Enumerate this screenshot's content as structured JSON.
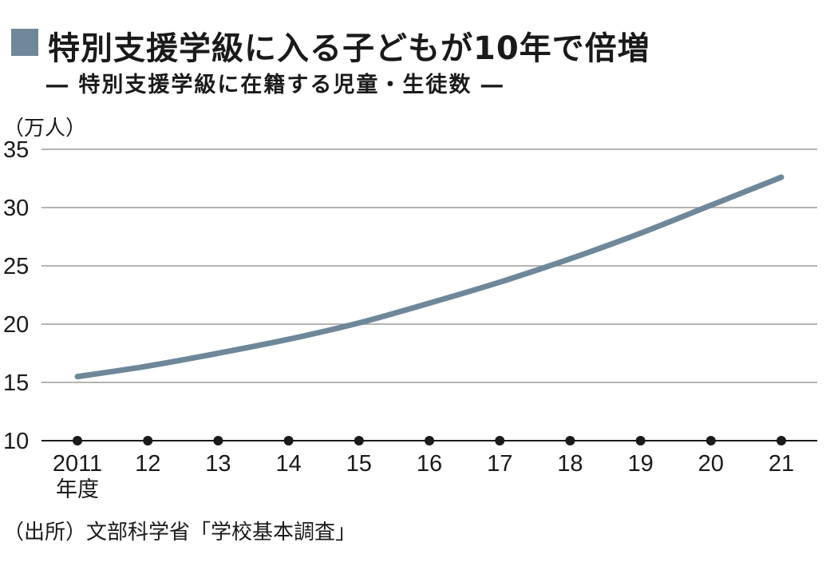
{
  "header": {
    "title": "特別支援学級に入る子どもが10年で倍増",
    "subtitle": "― 特別支援学級に在籍する児童・生徒数 ―"
  },
  "footer": {
    "source": "（出所）文部科学省「学校基本調査」"
  },
  "colors": {
    "line": "#6e8899",
    "marker": "#6e8899",
    "grid": "#9a9a9a",
    "axis": "#1a1a1a"
  },
  "chart_data": {
    "type": "line",
    "title": "特別支援学級に入る子どもが10年で倍増",
    "subtitle": "― 特別支援学級に在籍する児童・生徒数 ―",
    "ylabel": "（万人）",
    "xlabel": "年度",
    "x": [
      "2011",
      "12",
      "13",
      "14",
      "15",
      "16",
      "17",
      "18",
      "19",
      "20",
      "21"
    ],
    "x_axis_unit_label": "年度",
    "ylim": [
      10,
      35
    ],
    "yticks": [
      10,
      15,
      20,
      25,
      30,
      35
    ],
    "grid": true,
    "series": [
      {
        "values": [
          15.5,
          16.4,
          17.5,
          18.7,
          20.1,
          21.8,
          23.6,
          25.6,
          27.8,
          30.2,
          32.6
        ]
      }
    ]
  }
}
